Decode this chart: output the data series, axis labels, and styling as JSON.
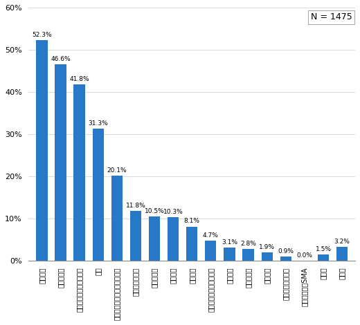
{
  "categories": [
    "定期預金",
    "普通預貯金",
    "ゆうちょ銀行の定額貯金",
    "株式",
    "国債・公債・社債・転換社債",
    "国内の投資信託",
    "貯蓄型保険",
    "財形貯蓄",
    "外貨預金",
    "外国で作られた投資信託",
    "外国債券",
    "金貯蓄口座",
    "変額年金",
    "利付・割引金融債",
    "ラップ口座・SMA",
    "その他",
    "無回答"
  ],
  "values": [
    52.3,
    46.6,
    41.8,
    31.3,
    20.1,
    11.8,
    10.5,
    10.3,
    8.1,
    4.7,
    3.1,
    2.8,
    1.9,
    0.9,
    0.0,
    1.5,
    3.2
  ],
  "bar_color": "#2878c8",
  "background_color": "#ffffff",
  "n_label": "N = 1475",
  "ylim": [
    0,
    60
  ],
  "yticks": [
    0,
    10,
    20,
    30,
    40,
    50,
    60
  ],
  "ytick_labels": [
    "0%",
    "10%",
    "20%",
    "30%",
    "40%",
    "50%",
    "60%"
  ],
  "value_fontsize": 6.5,
  "xlabel_fontsize": 7.0,
  "ylabel_fontsize": 8.0,
  "n_fontsize": 9.0
}
